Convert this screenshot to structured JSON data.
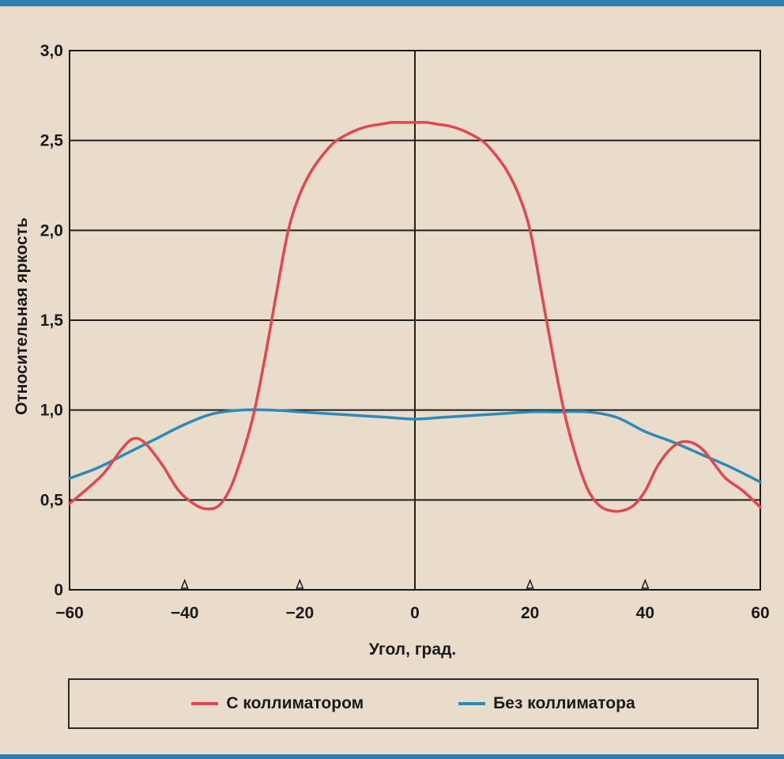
{
  "chart_data": {
    "type": "line",
    "title": "",
    "xlabel": "Угол, град.",
    "ylabel": "Относительная яркость",
    "xlim": [
      -60,
      60
    ],
    "ylim": [
      0,
      3.0
    ],
    "x_ticks": [
      -60,
      -40,
      -20,
      0,
      20,
      40,
      60
    ],
    "x_tick_labels": [
      "−60",
      "−40",
      "−20",
      "0",
      "20",
      "40",
      "60"
    ],
    "y_ticks": [
      0,
      0.5,
      1.0,
      1.5,
      2.0,
      2.5,
      3.0
    ],
    "y_tick_labels": [
      "0",
      "0,5",
      "1,0",
      "1,5",
      "2,0",
      "2,5",
      "3,0"
    ],
    "grid": true,
    "legend_position": "bottom",
    "x_markers": [
      -40,
      -20,
      20,
      40
    ],
    "series": [
      {
        "name": "С коллиматором",
        "color": "#e0474f",
        "x": [
          -60,
          -57,
          -54,
          -51,
          -49,
          -47,
          -44,
          -41,
          -38,
          -36,
          -34,
          -32,
          -30,
          -28,
          -26,
          -24,
          -22,
          -20,
          -18,
          -16,
          -14,
          -12,
          -10,
          -8,
          -6,
          -4,
          -2,
          0,
          2,
          4,
          6,
          8,
          10,
          12,
          14,
          16,
          18,
          20,
          22,
          24,
          26,
          28,
          30,
          32,
          34,
          36,
          38,
          40,
          42,
          44,
          46,
          48,
          50,
          52,
          54,
          57,
          60
        ],
        "y": [
          0.48,
          0.56,
          0.65,
          0.78,
          0.84,
          0.82,
          0.7,
          0.55,
          0.47,
          0.45,
          0.47,
          0.57,
          0.75,
          0.98,
          1.3,
          1.66,
          2.0,
          2.2,
          2.33,
          2.42,
          2.49,
          2.53,
          2.56,
          2.58,
          2.59,
          2.6,
          2.6,
          2.6,
          2.6,
          2.59,
          2.58,
          2.56,
          2.53,
          2.49,
          2.42,
          2.33,
          2.2,
          2.0,
          1.65,
          1.3,
          0.98,
          0.74,
          0.56,
          0.47,
          0.44,
          0.44,
          0.47,
          0.55,
          0.68,
          0.77,
          0.82,
          0.82,
          0.78,
          0.7,
          0.62,
          0.55,
          0.46
        ]
      },
      {
        "name": "Без коллиматора",
        "color": "#2d8ab8",
        "x": [
          -60,
          -55,
          -50,
          -45,
          -40,
          -35,
          -30,
          -25,
          -20,
          -15,
          -10,
          -5,
          0,
          5,
          10,
          15,
          20,
          25,
          30,
          35,
          40,
          45,
          50,
          55,
          60
        ],
        "y": [
          0.62,
          0.68,
          0.76,
          0.84,
          0.92,
          0.98,
          1.0,
          1.0,
          0.99,
          0.98,
          0.97,
          0.96,
          0.95,
          0.96,
          0.97,
          0.98,
          0.99,
          0.99,
          0.99,
          0.96,
          0.88,
          0.82,
          0.75,
          0.68,
          0.6
        ]
      }
    ]
  }
}
